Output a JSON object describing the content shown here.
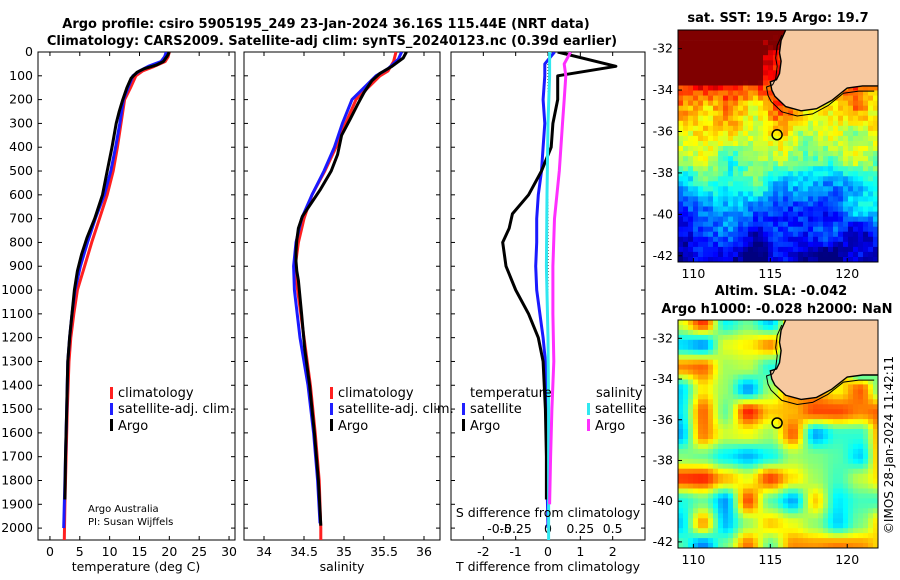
{
  "header": {
    "title_line1": "Argo profile: csiro 5905195_249 23-Jan-2024 36.16S 115.44E (NRT data)",
    "title_line2": "Climatology: CARS2009. Satellite-adj clim: synTS_20240123.nc (0.39d earlier)"
  },
  "credits": {
    "line1": "Argo Australia",
    "line2": "PI: Susan Wijffels",
    "imos": "©IMOS 28-Jan-2024 11:42:11"
  },
  "colors": {
    "climatology": "#ff2020",
    "satellite_adj": "#2020ff",
    "argo": "#000000",
    "sat_salinity": "#30e8f0",
    "argo_salinity": "#ff30ff",
    "land": "#f7c9a0"
  },
  "chart_data": [
    {
      "type": "line",
      "id": "temperature",
      "xlabel": "temperature (deg C)",
      "ylabel": "",
      "xlim": [
        -2,
        31
      ],
      "ylim": [
        2050,
        0
      ],
      "y_reversed": true,
      "xticks": [
        0,
        5,
        10,
        15,
        20,
        25,
        30
      ],
      "yticks": [
        0,
        100,
        200,
        300,
        400,
        500,
        600,
        700,
        800,
        900,
        1000,
        1100,
        1200,
        1300,
        1400,
        1500,
        1600,
        1700,
        1800,
        1900,
        2000
      ],
      "legend": [
        "climatology",
        "satellite-adj. clim.",
        "Argo"
      ],
      "series": [
        {
          "name": "climatology",
          "color": "red",
          "points": [
            [
              20,
              0
            ],
            [
              19.8,
              20
            ],
            [
              19.3,
              40
            ],
            [
              17.5,
              60
            ],
            [
              15.5,
              80
            ],
            [
              14.4,
              100
            ],
            [
              13.5,
              150
            ],
            [
              12.5,
              200
            ],
            [
              11.9,
              300
            ],
            [
              11.3,
              400
            ],
            [
              10.6,
              500
            ],
            [
              9.6,
              600
            ],
            [
              8.3,
              700
            ],
            [
              7.0,
              800
            ],
            [
              5.8,
              900
            ],
            [
              4.6,
              1000
            ],
            [
              4.0,
              1100
            ],
            [
              3.5,
              1200
            ],
            [
              3.2,
              1300
            ],
            [
              2.9,
              1500
            ],
            [
              2.7,
              1700
            ],
            [
              2.5,
              1900
            ],
            [
              2.4,
              2050
            ]
          ]
        },
        {
          "name": "satellite-adj. clim.",
          "color": "blue",
          "points": [
            [
              19.5,
              0
            ],
            [
              19.2,
              20
            ],
            [
              18.6,
              40
            ],
            [
              16.5,
              60
            ],
            [
              15.0,
              80
            ],
            [
              13.9,
              100
            ],
            [
              13.1,
              150
            ],
            [
              12.3,
              200
            ],
            [
              11.7,
              300
            ],
            [
              11.0,
              400
            ],
            [
              10.2,
              500
            ],
            [
              9.1,
              600
            ],
            [
              7.6,
              700
            ],
            [
              6.3,
              800
            ],
            [
              5.1,
              900
            ],
            [
              4.2,
              1000
            ],
            [
              3.7,
              1100
            ],
            [
              3.3,
              1200
            ],
            [
              3.0,
              1300
            ],
            [
              2.8,
              1500
            ],
            [
              2.6,
              1700
            ],
            [
              2.4,
              1900
            ],
            [
              2.3,
              2000
            ]
          ]
        },
        {
          "name": "Argo",
          "color": "black",
          "points": [
            [
              20,
              0
            ],
            [
              19.7,
              15
            ],
            [
              19.0,
              40
            ],
            [
              17.8,
              55
            ],
            [
              15.8,
              70
            ],
            [
              14.6,
              85
            ],
            [
              13.6,
              110
            ],
            [
              12.9,
              150
            ],
            [
              12.2,
              200
            ],
            [
              11.6,
              250
            ],
            [
              11.1,
              300
            ],
            [
              10.4,
              400
            ],
            [
              9.6,
              500
            ],
            [
              8.8,
              600
            ],
            [
              7.5,
              700
            ],
            [
              6.2,
              780
            ],
            [
              5.3,
              850
            ],
            [
              4.6,
              920
            ],
            [
              4.1,
              1000
            ],
            [
              3.7,
              1100
            ],
            [
              3.3,
              1200
            ],
            [
              3.0,
              1300
            ],
            [
              2.8,
              1500
            ],
            [
              2.6,
              1700
            ],
            [
              2.5,
              1880
            ]
          ]
        }
      ]
    },
    {
      "type": "line",
      "id": "salinity",
      "xlabel": "salinity",
      "xlim": [
        33.75,
        36.2
      ],
      "ylim": [
        2050,
        0
      ],
      "xticks": [
        34,
        34.5,
        35,
        35.5,
        36
      ],
      "legend": [
        "climatology",
        "satellite-adj. clim.",
        "Argo"
      ],
      "series": [
        {
          "name": "climatology",
          "color": "red",
          "points": [
            [
              35.65,
              0
            ],
            [
              35.62,
              40
            ],
            [
              35.55,
              80
            ],
            [
              35.45,
              100
            ],
            [
              35.3,
              150
            ],
            [
              35.15,
              200
            ],
            [
              35.02,
              300
            ],
            [
              34.9,
              400
            ],
            [
              34.76,
              500
            ],
            [
              34.6,
              600
            ],
            [
              34.5,
              700
            ],
            [
              34.43,
              800
            ],
            [
              34.39,
              900
            ],
            [
              34.42,
              1000
            ],
            [
              34.5,
              1200
            ],
            [
              34.58,
              1400
            ],
            [
              34.64,
              1600
            ],
            [
              34.69,
              1800
            ],
            [
              34.71,
              2000
            ],
            [
              34.71,
              2050
            ]
          ]
        },
        {
          "name": "satellite-adj. clim.",
          "color": "blue",
          "points": [
            [
              35.72,
              0
            ],
            [
              35.68,
              30
            ],
            [
              35.55,
              70
            ],
            [
              35.4,
              100
            ],
            [
              35.25,
              150
            ],
            [
              35.1,
              200
            ],
            [
              34.98,
              300
            ],
            [
              34.88,
              400
            ],
            [
              34.75,
              500
            ],
            [
              34.6,
              600
            ],
            [
              34.47,
              700
            ],
            [
              34.4,
              800
            ],
            [
              34.37,
              900
            ],
            [
              34.38,
              1000
            ],
            [
              34.45,
              1200
            ],
            [
              34.55,
              1400
            ],
            [
              34.62,
              1600
            ],
            [
              34.67,
              1800
            ],
            [
              34.7,
              1980
            ]
          ]
        },
        {
          "name": "Argo",
          "color": "black",
          "points": [
            [
              35.78,
              0
            ],
            [
              35.74,
              25
            ],
            [
              35.6,
              60
            ],
            [
              35.45,
              90
            ],
            [
              35.35,
              120
            ],
            [
              35.25,
              170
            ],
            [
              35.17,
              220
            ],
            [
              35.08,
              280
            ],
            [
              34.97,
              350
            ],
            [
              34.92,
              430
            ],
            [
              34.84,
              500
            ],
            [
              34.7,
              580
            ],
            [
              34.6,
              630
            ],
            [
              34.48,
              690
            ],
            [
              34.43,
              740
            ],
            [
              34.41,
              790
            ],
            [
              34.4,
              840
            ],
            [
              34.4,
              880
            ],
            [
              34.41,
              920
            ],
            [
              34.43,
              960
            ],
            [
              34.47,
              1100
            ],
            [
              34.51,
              1250
            ],
            [
              34.57,
              1400
            ],
            [
              34.63,
              1600
            ],
            [
              34.68,
              1800
            ],
            [
              34.71,
              1990
            ]
          ]
        }
      ]
    },
    {
      "type": "line",
      "id": "difference",
      "xlabel": "T difference from climatology",
      "xlabel_top": "S difference from climatology",
      "xlim": [
        -3,
        3
      ],
      "ylim": [
        2050,
        0
      ],
      "xticks": [
        -2,
        -1,
        0,
        1,
        2
      ],
      "xticks_salinity": [
        "-0.5",
        "-0.25",
        "0",
        "0.25",
        "0.5"
      ],
      "legend_left_title": "temperature",
      "legend_right_title": "salinity",
      "legend": [
        "satellite",
        "Argo",
        "satellite",
        "Argo"
      ],
      "series": [
        {
          "name": "T satellite",
          "color": "blue",
          "points": [
            [
              0.2,
              0
            ],
            [
              -0.1,
              50
            ],
            [
              -0.1,
              100
            ],
            [
              -0.15,
              200
            ],
            [
              -0.1,
              300
            ],
            [
              -0.15,
              400
            ],
            [
              -0.2,
              500
            ],
            [
              -0.3,
              600
            ],
            [
              -0.35,
              700
            ],
            [
              -0.35,
              800
            ],
            [
              -0.38,
              900
            ],
            [
              -0.35,
              1000
            ],
            [
              -0.25,
              1100
            ],
            [
              -0.15,
              1200
            ],
            [
              -0.08,
              1300
            ],
            [
              -0.05,
              1500
            ],
            [
              -0.03,
              1800
            ],
            [
              0,
              2000
            ]
          ]
        },
        {
          "name": "T Argo",
          "color": "black",
          "points": [
            [
              0.3,
              0
            ],
            [
              2.1,
              60
            ],
            [
              0.3,
              100
            ],
            [
              0.3,
              200
            ],
            [
              0.15,
              300
            ],
            [
              0.1,
              400
            ],
            [
              -0.2,
              500
            ],
            [
              -0.6,
              600
            ],
            [
              -1.1,
              680
            ],
            [
              -1.2,
              740
            ],
            [
              -1.4,
              800
            ],
            [
              -1.3,
              900
            ],
            [
              -1.0,
              1000
            ],
            [
              -0.6,
              1100
            ],
            [
              -0.3,
              1200
            ],
            [
              -0.15,
              1300
            ],
            [
              -0.08,
              1500
            ],
            [
              -0.05,
              1700
            ],
            [
              -0.05,
              1880
            ]
          ]
        },
        {
          "name": "S satellite",
          "color": "cyan",
          "points": [
            [
              0.05,
              0
            ],
            [
              0.05,
              100
            ],
            [
              0.0,
              300
            ],
            [
              -0.03,
              600
            ],
            [
              -0.05,
              900
            ],
            [
              0.0,
              1200
            ],
            [
              0.02,
              1500
            ],
            [
              0.02,
              1800
            ],
            [
              0.02,
              2050
            ]
          ]
        },
        {
          "name": "S Argo",
          "color": "magenta",
          "points": [
            [
              0.7,
              0
            ],
            [
              0.5,
              50
            ],
            [
              0.55,
              100
            ],
            [
              0.5,
              200
            ],
            [
              0.45,
              300
            ],
            [
              0.35,
              500
            ],
            [
              0.2,
              700
            ],
            [
              0.15,
              900
            ],
            [
              0.15,
              1100
            ],
            [
              0.18,
              1300
            ],
            [
              0.12,
              1500
            ],
            [
              0.08,
              1700
            ],
            [
              0.05,
              1900
            ]
          ]
        }
      ]
    },
    {
      "type": "heatmap",
      "id": "sst_map",
      "title": "sat. SST: 19.5 Argo: 19.7",
      "xlim": [
        109,
        122
      ],
      "ylim": [
        -42.3,
        -31.1
      ],
      "xticks": [
        110,
        115,
        120
      ],
      "yticks": [
        -32,
        -34,
        -36,
        -38,
        -40,
        -42
      ],
      "float_position": [
        115.44,
        -36.16
      ]
    },
    {
      "type": "heatmap",
      "id": "sla_map",
      "title_line1": "Altim. SLA: -0.042",
      "title_line2": "Argo h1000: -0.028 h2000: NaN",
      "xlim": [
        109,
        122
      ],
      "ylim": [
        -42.3,
        -31.1
      ],
      "xticks": [
        110,
        115,
        120
      ],
      "yticks": [
        -32,
        -34,
        -36,
        -38,
        -40,
        -42
      ],
      "float_position": [
        115.44,
        -36.16
      ]
    }
  ]
}
